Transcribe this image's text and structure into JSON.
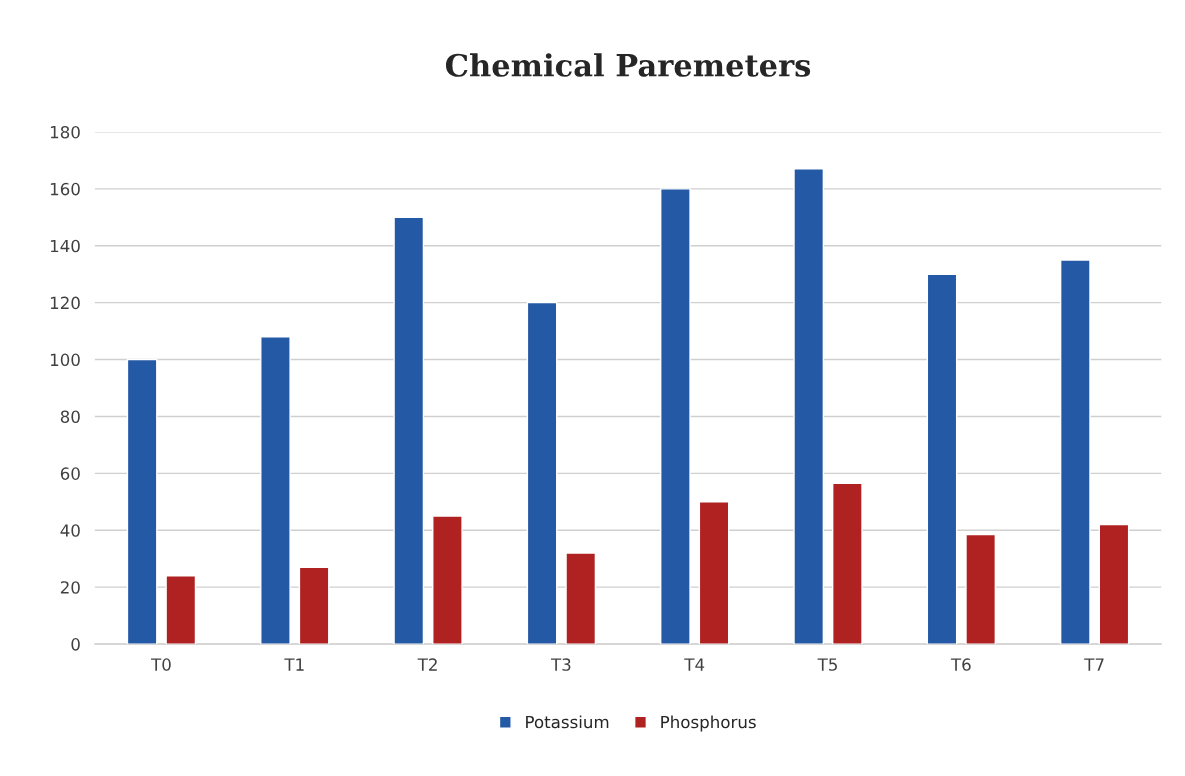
{
  "chart_data": {
    "type": "bar",
    "title": "Chemical Paremeters",
    "categories": [
      "T0",
      "T1",
      "T2",
      "T3",
      "T4",
      "T5",
      "T6",
      "T7"
    ],
    "series": [
      {
        "name": "Potassium",
        "color": "#2459a6",
        "values": [
          100,
          108,
          150,
          120,
          160,
          167,
          130,
          135
        ]
      },
      {
        "name": "Phosphorus",
        "color": "#b02222",
        "values": [
          24,
          27,
          45,
          32,
          50,
          56.5,
          38.5,
          42
        ]
      }
    ],
    "ylim": [
      0,
      180
    ],
    "yticks": [
      0,
      20,
      40,
      60,
      80,
      100,
      120,
      140,
      160,
      180
    ],
    "grid": "y",
    "legend": "bottom"
  }
}
